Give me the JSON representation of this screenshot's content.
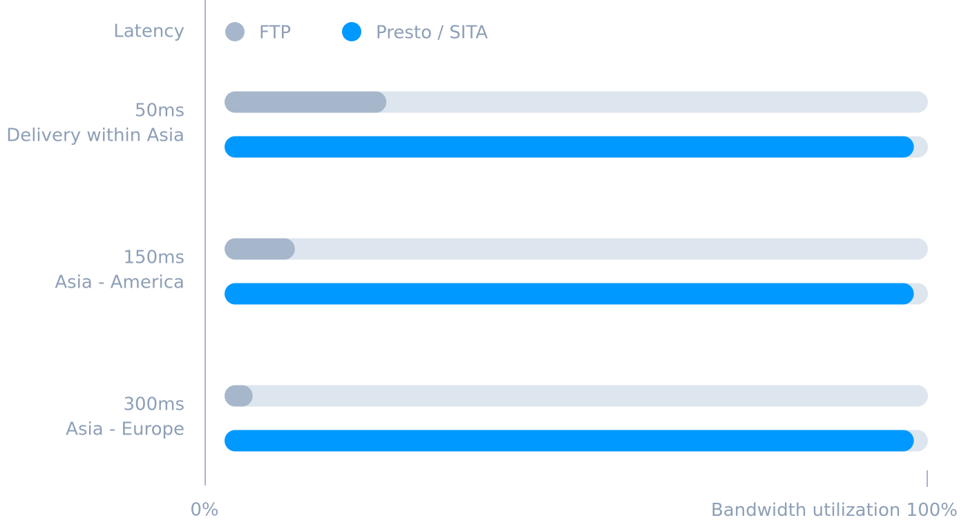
{
  "chart_data": {
    "type": "hbar",
    "y_label": "Latency",
    "x_label": "Bandwidth utilization",
    "categories": [
      "50ms",
      "150ms",
      "300ms"
    ],
    "category_descriptions": [
      "Delivery within Asia",
      "Asia - America",
      "Asia - Europe"
    ],
    "series": [
      {
        "name": "FTP",
        "color": "#a6b7cc",
        "values": [
          23,
          10,
          4
        ]
      },
      {
        "name": "Presto / SITA",
        "color": "#0099ff",
        "values": [
          98,
          98,
          98
        ]
      }
    ],
    "track_color": "#dde5ee",
    "xlim": [
      0,
      100
    ],
    "xticks": [
      {
        "value": 0,
        "label": "0%"
      },
      {
        "value": 100,
        "label": "100%"
      }
    ]
  }
}
